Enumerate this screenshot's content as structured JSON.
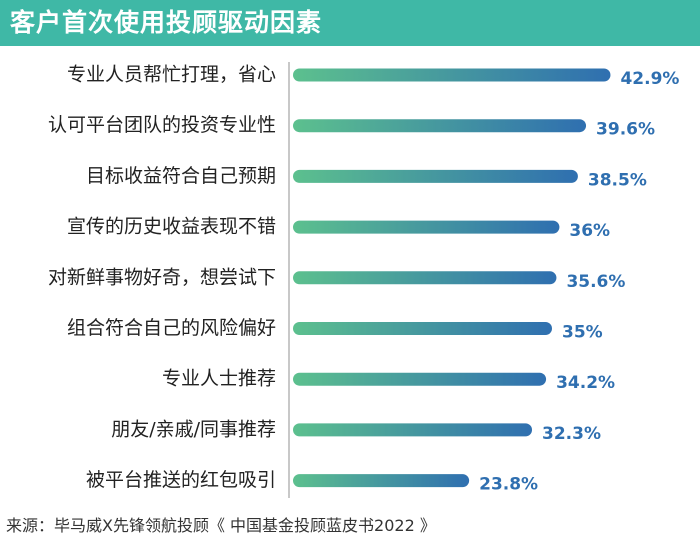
{
  "title": "客户首次使用投顾驱动因素",
  "source": "来源：毕马威X先锋领航投顾《 中国基金投顾蓝皮书2022 》",
  "colors": {
    "header_bg": "#3fb8a6",
    "bar_start": "#5cc08e",
    "bar_end": "#2f6fb0",
    "value_label": "#2f6fb0"
  },
  "chart_data": {
    "type": "bar",
    "orientation": "horizontal",
    "categories": [
      "专业人员帮忙打理，省心",
      "认可平台团队的投资专业性",
      "目标收益符合自己预期",
      "宣传的历史收益表现不错",
      "对新鲜事物好奇，想尝试下",
      "组合符合自己的风险偏好",
      "专业人士推荐",
      "朋友/亲戚/同事推荐",
      "被平台推送的红包吸引"
    ],
    "values": [
      42.9,
      39.6,
      38.5,
      36,
      35.6,
      35,
      34.2,
      32.3,
      23.8
    ],
    "value_labels": [
      "42.9%",
      "39.6%",
      "38.5%",
      "36%",
      "35.6%",
      "35%",
      "34.2%",
      "32.3%",
      "23.8%"
    ],
    "title": "客户首次使用投顾驱动因素",
    "xlabel": "",
    "ylabel": "",
    "grid": false,
    "legend": "none"
  }
}
